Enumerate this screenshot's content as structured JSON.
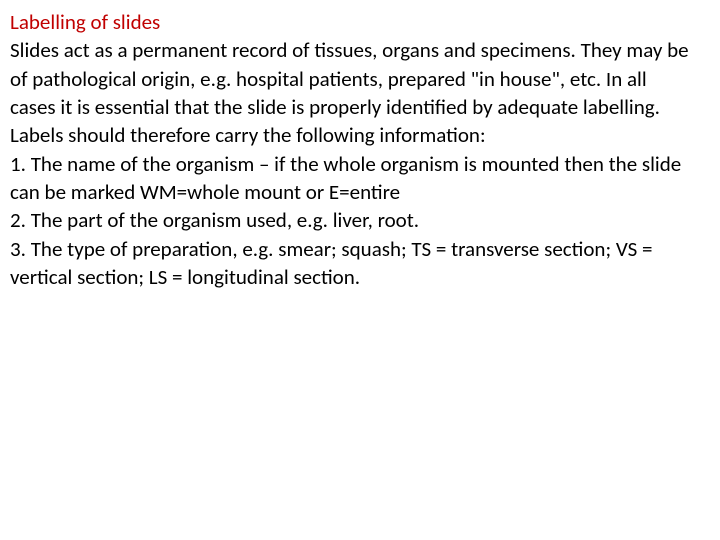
{
  "colors": {
    "heading": "#c00000",
    "body": "#000000",
    "background": "#ffffff"
  },
  "typography": {
    "font_family": "Calibri, 'Segoe UI', Arial, sans-serif",
    "font_size_pt": 16,
    "line_height": 1.35
  },
  "heading": "Labelling of slides",
  "lines": {
    "l1": "Slides act as a permanent record of tissues, organs and specimens. They may be",
    "l2": "of pathological origin, e.g. hospital patients, prepared \"in house\", etc. In all",
    "l3": "cases it is essential that the slide is properly identified by adequate labelling.",
    "l4": "Labels should therefore carry the following information:",
    "l5": "1. The name of the organism – if the whole organism is mounted then the slide",
    "l6": "can be marked WM=whole mount or E=entire",
    "l7": "2. The part of the organism used, e.g. liver, root.",
    "l8": "3. The type of preparation, e.g. smear; squash; TS = transverse section; VS =",
    "l9": "vertical section; LS = longitudinal section."
  }
}
